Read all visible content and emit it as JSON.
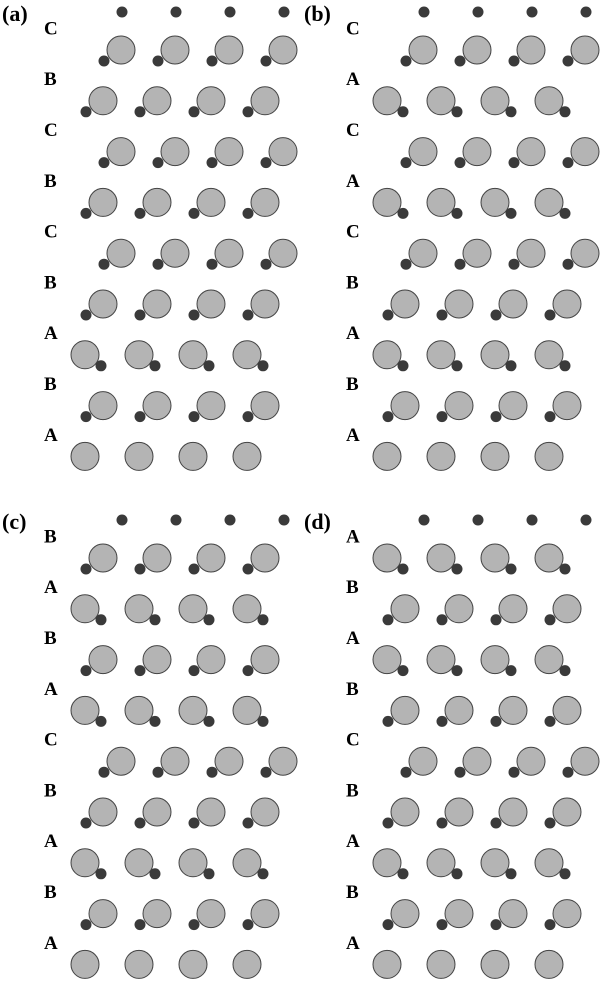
{
  "panels": [
    {
      "label": "(a)",
      "layers": [
        "C",
        "B",
        "C",
        "B",
        "C",
        "B",
        "A",
        "B",
        "A"
      ]
    },
    {
      "label": "(b)",
      "layers": [
        "C",
        "A",
        "C",
        "A",
        "C",
        "B",
        "A",
        "B",
        "A"
      ]
    },
    {
      "label": "(c)",
      "layers": [
        "B",
        "A",
        "B",
        "A",
        "C",
        "B",
        "A",
        "B",
        "A"
      ]
    },
    {
      "label": "(d)",
      "layers": [
        "A",
        "B",
        "A",
        "B",
        "C",
        "B",
        "A",
        "B",
        "A"
      ]
    }
  ]
}
